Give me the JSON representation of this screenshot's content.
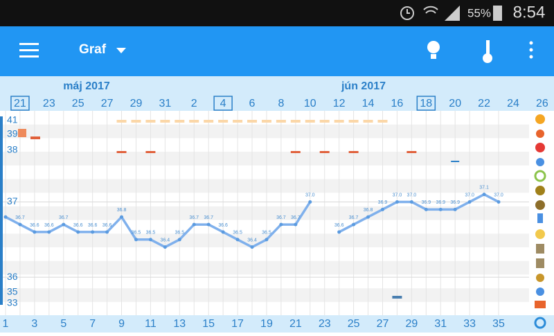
{
  "status_bar": {
    "battery": "55%",
    "time": "8:54"
  },
  "app_bar": {
    "title": "Graf"
  },
  "chart_data": {
    "type": "line",
    "months": [
      "máj 2017",
      "jún 2017"
    ],
    "dates": [
      "21",
      "23",
      "25",
      "27",
      "29",
      "31",
      "2",
      "4",
      "6",
      "8",
      "10",
      "12",
      "14",
      "16",
      "18",
      "20",
      "22",
      "24",
      "26"
    ],
    "row_labels": [
      "41",
      "39",
      "38",
      "35",
      "33"
    ],
    "x": [
      1,
      2,
      3,
      4,
      5,
      6,
      7,
      8,
      9,
      10,
      11,
      12,
      13,
      14,
      15,
      16,
      17,
      18,
      19,
      20,
      21,
      22,
      23,
      24,
      25,
      26,
      27,
      28,
      29,
      30,
      31,
      32,
      33,
      34,
      35
    ],
    "xticks": [
      1,
      3,
      5,
      7,
      9,
      11,
      13,
      15,
      17,
      19,
      21,
      23,
      25,
      27,
      29,
      31,
      33,
      35
    ],
    "series": [
      {
        "name": "Teplota",
        "color": "#7fb0ec",
        "values": [
          36.8,
          36.7,
          36.6,
          36.6,
          36.7,
          36.6,
          36.6,
          36.6,
          36.8,
          36.5,
          36.5,
          36.4,
          36.5,
          36.7,
          36.7,
          36.6,
          36.5,
          36.4,
          36.5,
          36.7,
          36.7,
          37.0,
          null,
          36.6,
          36.7,
          36.8,
          36.9,
          37.0,
          37.0,
          36.9,
          36.9,
          36.9,
          37.0,
          37.1,
          37.0
        ],
        "value_labels": [
          null,
          "36.7",
          "36.6",
          "36.6",
          "36.7",
          "36.6",
          "36.6",
          "36.6",
          "36.8",
          "36.5",
          "36.5",
          "36.4",
          "36.5",
          "36.7",
          "36.7",
          "36.6",
          "36.5",
          "36.4",
          "36.5",
          "36.7",
          "36.7",
          "37.0",
          null,
          "36.6",
          "36.7",
          "36.8",
          "36.9",
          "37.0",
          "37.0",
          "36.9",
          "36.9",
          "36.9",
          "37.0",
          "37.1",
          "37.0"
        ]
      }
    ],
    "yticks": [
      36,
      37
    ],
    "ylim": [
      35.495,
      38.21
    ],
    "xlim": [
      1,
      37.1
    ],
    "grid": true
  }
}
